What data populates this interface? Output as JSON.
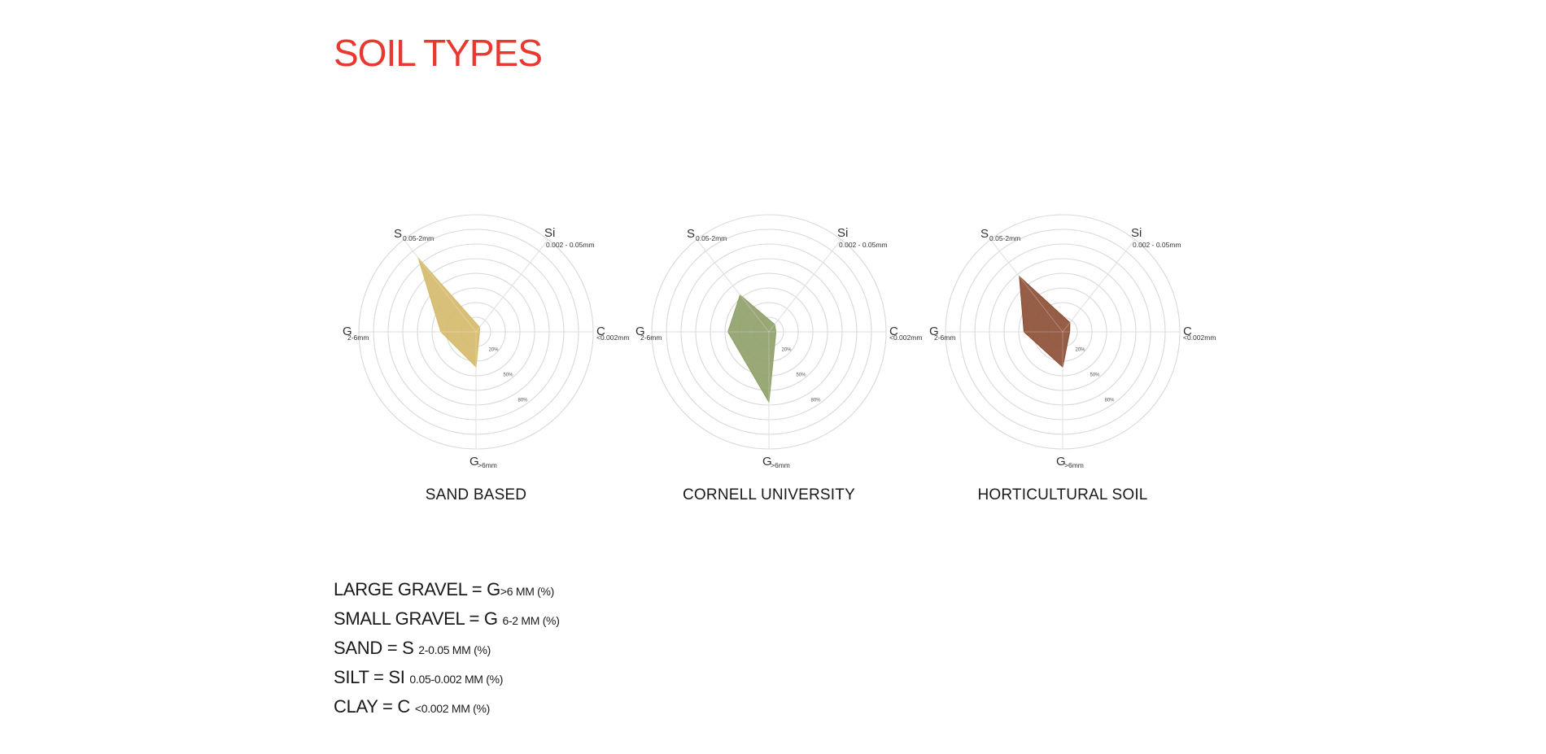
{
  "page": {
    "title": "SOIL TYPES",
    "title_color": "#e8382f"
  },
  "chart_data": [
    {
      "type": "radar",
      "title": "SAND BASED",
      "fill_color": "#d4b969",
      "axes": [
        {
          "key": "S",
          "letter": "S",
          "range": "0.05-2mm"
        },
        {
          "key": "Si",
          "letter": "Si",
          "range": "0.002 - 0.05mm"
        },
        {
          "key": "C",
          "letter": "C",
          "range": "<0.002mm"
        },
        {
          "key": "Gl",
          "letter": "G",
          "range": ">6mm"
        },
        {
          "key": "Gs",
          "letter": "G",
          "range": "2-6mm"
        }
      ],
      "ring_labels": [
        "20%",
        "50%",
        "80%"
      ],
      "values": {
        "S": 80,
        "Si": 5,
        "C": 3,
        "Gl": 30,
        "Gs": 30
      }
    },
    {
      "type": "radar",
      "title": "CORNELL UNIVERSITY",
      "fill_color": "#8e9f68",
      "axes": [
        {
          "key": "S",
          "letter": "S",
          "range": "0.05-2mm"
        },
        {
          "key": "Si",
          "letter": "Si",
          "range": "0.002 - 0.05mm"
        },
        {
          "key": "C",
          "letter": "C",
          "range": "<0.002mm"
        },
        {
          "key": "Gl",
          "letter": "G",
          "range": ">6mm"
        },
        {
          "key": "Gs",
          "letter": "G",
          "range": "2-6mm"
        }
      ],
      "ring_labels": [
        "20%",
        "50%",
        "80%"
      ],
      "values": {
        "S": 40,
        "Si": 8,
        "C": 6,
        "Gl": 60,
        "Gs": 35
      }
    },
    {
      "type": "radar",
      "title": "HORTICULTURAL SOIL",
      "fill_color": "#8b4b33",
      "axes": [
        {
          "key": "S",
          "letter": "S",
          "range": "0.05-2mm"
        },
        {
          "key": "Si",
          "letter": "Si",
          "range": "0.002 - 0.05mm"
        },
        {
          "key": "C",
          "letter": "C",
          "range": "<0.002mm"
        },
        {
          "key": "Gl",
          "letter": "G",
          "range": ">6mm"
        },
        {
          "key": "Gs",
          "letter": "G",
          "range": "2-6mm"
        }
      ],
      "ring_labels": [
        "20%",
        "50%",
        "80%"
      ],
      "values": {
        "S": 60,
        "Si": 10,
        "C": 6,
        "Gl": 30,
        "Gs": 33
      }
    }
  ],
  "legend": [
    {
      "main": "LARGE GRAVEL = G",
      "sub": ">6 MM (%)"
    },
    {
      "main": "SMALL GRAVEL = G",
      "sub": "6-2 MM (%)"
    },
    {
      "main": "SAND = S",
      "sub": "2-0.05 MM (%)"
    },
    {
      "main": "SILT = SI",
      "sub": "0.05-0.002 MM (%)"
    },
    {
      "main": "CLAY = C",
      "sub": "<0.002 MM (%)"
    }
  ]
}
